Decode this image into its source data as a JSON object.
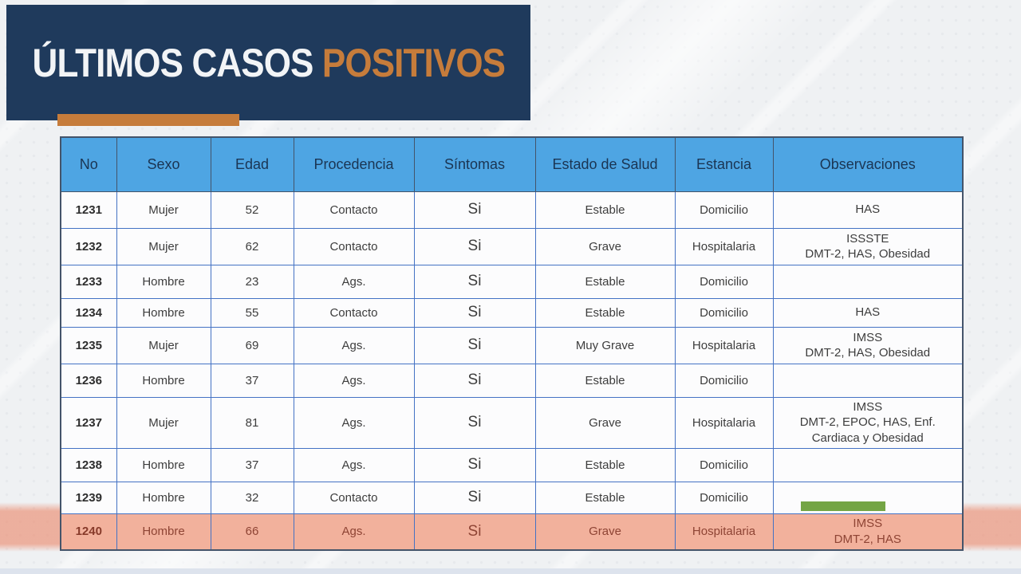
{
  "slide": {
    "title_white": "ÚLTIMOS CASOS",
    "title_accent": "POSITIVOS"
  },
  "colors": {
    "navy": "#1f3a5c",
    "accent_orange": "#c67c3b",
    "header_blue": "#4ea5e3",
    "header_text": "#1b3553",
    "cell_text": "#3d3d3d",
    "border_blue": "#4472c4",
    "border_dark": "#44546a",
    "highlight_bg": "#f2b19c",
    "highlight_text": "#8e4434",
    "green_marker": "#74a544",
    "slide_bg": "#eff1f3"
  },
  "table": {
    "columns": [
      {
        "key": "no",
        "label": "No"
      },
      {
        "key": "sexo",
        "label": "Sexo"
      },
      {
        "key": "edad",
        "label": "Edad"
      },
      {
        "key": "procedencia",
        "label": "Procedencia"
      },
      {
        "key": "sintomas",
        "label": "Síntomas"
      },
      {
        "key": "estado",
        "label": "Estado de Salud"
      },
      {
        "key": "estancia",
        "label": "Estancia"
      },
      {
        "key": "observaciones",
        "label": "Observaciones"
      }
    ],
    "rows": [
      {
        "no": "1231",
        "sexo": "Mujer",
        "edad": "52",
        "procedencia": "Contacto",
        "sintomas": "Si",
        "estado": "Estable",
        "estancia": "Domicilio",
        "observaciones": "HAS"
      },
      {
        "no": "1232",
        "sexo": "Mujer",
        "edad": "62",
        "procedencia": "Contacto",
        "sintomas": "Si",
        "estado": "Grave",
        "estancia": "Hospitalaria",
        "observaciones": "ISSSTE\nDMT-2, HAS, Obesidad"
      },
      {
        "no": "1233",
        "sexo": "Hombre",
        "edad": "23",
        "procedencia": "Ags.",
        "sintomas": "Si",
        "estado": "Estable",
        "estancia": "Domicilio",
        "observaciones": ""
      },
      {
        "no": "1234",
        "sexo": "Hombre",
        "edad": "55",
        "procedencia": "Contacto",
        "sintomas": "Si",
        "estado": "Estable",
        "estancia": "Domicilio",
        "observaciones": "HAS"
      },
      {
        "no": "1235",
        "sexo": "Mujer",
        "edad": "69",
        "procedencia": "Ags.",
        "sintomas": "Si",
        "estado": "Muy Grave",
        "estancia": "Hospitalaria",
        "observaciones": "IMSS\nDMT-2, HAS, Obesidad"
      },
      {
        "no": "1236",
        "sexo": "Hombre",
        "edad": "37",
        "procedencia": "Ags.",
        "sintomas": "Si",
        "estado": "Estable",
        "estancia": "Domicilio",
        "observaciones": ""
      },
      {
        "no": "1237",
        "sexo": "Mujer",
        "edad": "81",
        "procedencia": "Ags.",
        "sintomas": "Si",
        "estado": "Grave",
        "estancia": "Hospitalaria",
        "observaciones": "IMSS\nDMT-2, EPOC, HAS, Enf.\nCardiaca y Obesidad"
      },
      {
        "no": "1238",
        "sexo": "Hombre",
        "edad": "37",
        "procedencia": "Ags.",
        "sintomas": "Si",
        "estado": "Estable",
        "estancia": "Domicilio",
        "observaciones": ""
      },
      {
        "no": "1239",
        "sexo": "Hombre",
        "edad": "32",
        "procedencia": "Contacto",
        "sintomas": "Si",
        "estado": "Estable",
        "estancia": "Domicilio",
        "observaciones": ""
      },
      {
        "no": "1240",
        "sexo": "Hombre",
        "edad": "66",
        "procedencia": "Ags.",
        "sintomas": "Si",
        "estado": "Grave",
        "estancia": "Hospitalaria",
        "observaciones": "IMSS\nDMT-2, HAS"
      }
    ],
    "highlighted_row_no": "1240"
  }
}
